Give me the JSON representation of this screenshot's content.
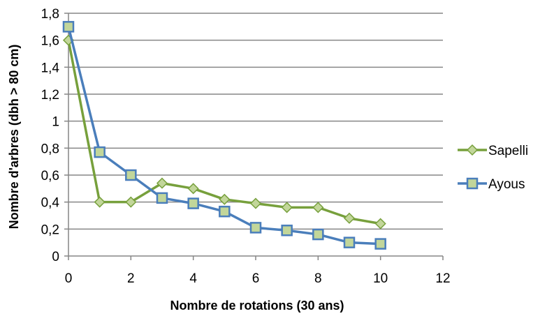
{
  "chart_data": {
    "type": "line",
    "xlabel": "Nombre de rotations (30 ans)",
    "ylabel": "Nombre d'arbres (dbh > 80 cm)",
    "xlim": [
      0,
      12
    ],
    "ylim": [
      0,
      1.8
    ],
    "x_ticks": [
      "0",
      "2",
      "4",
      "6",
      "8",
      "10",
      "12"
    ],
    "y_ticks": [
      "0",
      "0,2",
      "0,4",
      "0,6",
      "0,8",
      "1",
      "1,2",
      "1,4",
      "1,6",
      "1,8"
    ],
    "grid": "horizontal",
    "legend_position": "right",
    "x": [
      0,
      1,
      2,
      3,
      4,
      5,
      6,
      7,
      8,
      9,
      10
    ],
    "series": [
      {
        "name": "Sapelli",
        "color": "#77a03c",
        "marker": "diamond",
        "marker_fill": "#c2d69a",
        "values": [
          1.6,
          0.4,
          0.4,
          0.54,
          0.5,
          0.42,
          0.39,
          0.36,
          0.36,
          0.28,
          0.24
        ]
      },
      {
        "name": "Ayous",
        "color": "#4a7ebb",
        "marker": "square",
        "marker_fill": "#c2d69a",
        "values": [
          1.7,
          0.77,
          0.6,
          0.43,
          0.39,
          0.33,
          0.21,
          0.19,
          0.16,
          0.1,
          0.09
        ]
      }
    ]
  }
}
